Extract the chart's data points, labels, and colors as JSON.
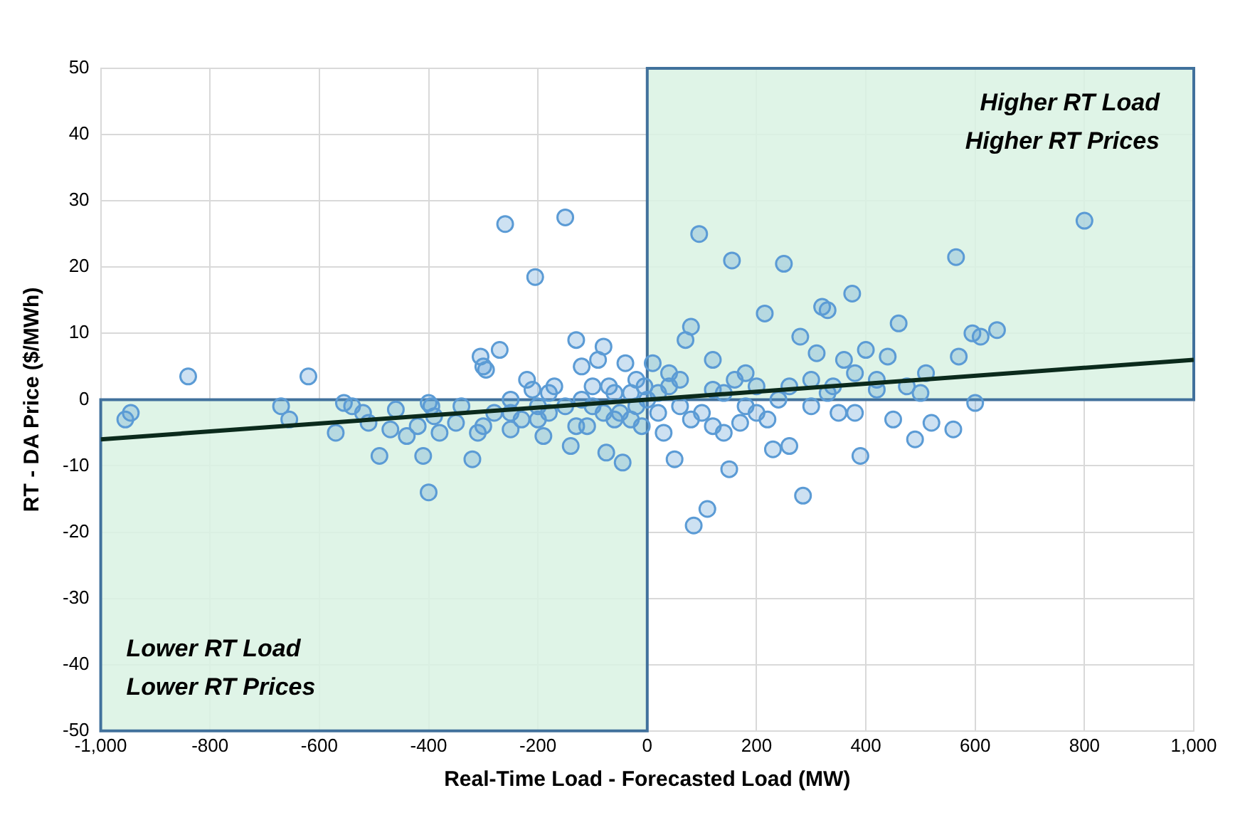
{
  "chart_data": {
    "type": "scatter",
    "xlabel": "Real-Time Load - Forecasted Load (MW)",
    "ylabel": "RT - DA Price ($/MWh)",
    "xlim": [
      -1000,
      1000
    ],
    "xticks": [
      {
        "value": -1000,
        "label": "-1,000"
      },
      -800,
      -600,
      -400,
      -200,
      0,
      200,
      400,
      600,
      800,
      {
        "value": 1000,
        "label": "1,000"
      }
    ],
    "ylim": [
      -50,
      50
    ],
    "yticks": [
      -50,
      -40,
      -30,
      -20,
      -10,
      0,
      10,
      20,
      30,
      40,
      50
    ],
    "grid": true,
    "legend": false,
    "marker": "circle",
    "bands": [
      {
        "axis": "x",
        "from": 0,
        "to": 1000,
        "label": "Higher RT Load\nHigher RT Prices",
        "color": "#d9f2e3"
      },
      {
        "axis": "x",
        "from": -1000,
        "to": 0,
        "label": "Lower RT Load\nLower RT Prices",
        "color": "#d9f2e3"
      }
    ],
    "series": [
      {
        "color": "#5b9bd5",
        "x": [
          -955,
          -945,
          -840,
          -620,
          -670,
          -655,
          -570,
          -555,
          -540,
          -520,
          -510,
          -490,
          -470,
          -460,
          -440,
          -420,
          -400,
          -395,
          -410,
          -400,
          -390,
          -380,
          -350,
          -320,
          -310,
          -300,
          -305,
          -300,
          -295,
          -270,
          -260,
          -250,
          -230,
          -220,
          -210,
          -205,
          -200,
          -190,
          -180,
          -170,
          -150,
          -140,
          -130,
          -120,
          -110,
          -100,
          -90,
          -80,
          -75,
          -70,
          -60,
          -50,
          -45,
          -40,
          -30,
          -20,
          -10,
          -5,
          10,
          20,
          30,
          50,
          60,
          70,
          80,
          85,
          95,
          110,
          120,
          140,
          150,
          155,
          170,
          180,
          200,
          215,
          230,
          250,
          260,
          280,
          285,
          300,
          310,
          320,
          330,
          340,
          360,
          375,
          380,
          390,
          400,
          420,
          440,
          450,
          460,
          475,
          490,
          500,
          510,
          520,
          560,
          565,
          570,
          595,
          600,
          610,
          640,
          800,
          -280,
          -250,
          -200,
          -180,
          -150,
          -120,
          -100,
          -80,
          -60,
          -30,
          0,
          20,
          40,
          60,
          80,
          100,
          120,
          140,
          160,
          180,
          200,
          220,
          240,
          260,
          300,
          330,
          350,
          380,
          420,
          120,
          40,
          -20,
          -130,
          -250,
          -340
        ],
        "values": [
          -3,
          -2,
          3.5,
          3.5,
          -1,
          -3,
          -5,
          -0.5,
          -1,
          -2,
          -3.5,
          -8.5,
          -4.5,
          -1.5,
          -5.5,
          -4,
          -0.5,
          -1,
          -8.5,
          -14,
          -2.5,
          -5,
          -3.5,
          -9,
          -5,
          -4,
          6.5,
          5,
          4.5,
          7.5,
          26.5,
          -2,
          -3,
          3,
          1.5,
          18.5,
          -1,
          -5.5,
          -2,
          2,
          27.5,
          -7,
          9,
          5,
          -4,
          -1,
          6,
          8,
          -8,
          2,
          -3,
          -2,
          -9.5,
          5.5,
          1,
          -1,
          -4,
          2,
          5.5,
          -2,
          -5,
          -9,
          3,
          9,
          11,
          -19,
          25,
          -16.5,
          1.5,
          -5,
          -10.5,
          21,
          -3.5,
          4,
          -2,
          13,
          -7.5,
          20.5,
          -7,
          9.5,
          -14.5,
          3,
          7,
          14,
          13.5,
          2,
          6,
          16,
          -2,
          -8.5,
          7.5,
          1.5,
          6.5,
          -3,
          11.5,
          2,
          -6,
          1,
          4,
          -3.5,
          -4.5,
          21.5,
          6.5,
          10,
          -0.5,
          9.5,
          10.5,
          27,
          -2,
          0,
          -3,
          1,
          -1,
          0,
          2,
          -2,
          1,
          -3,
          0,
          1,
          2,
          -1,
          -3,
          -2,
          -4,
          1,
          3,
          -1,
          2,
          -3,
          0,
          2,
          -1,
          1,
          -2,
          4,
          3,
          6,
          4,
          3,
          -4,
          -4.5,
          -1
        ]
      },
      {
        "type": "line",
        "color": "#0b2a1c",
        "x": [
          -1000,
          1000
        ],
        "values": [
          -6,
          6
        ],
        "marker": "none"
      }
    ]
  }
}
